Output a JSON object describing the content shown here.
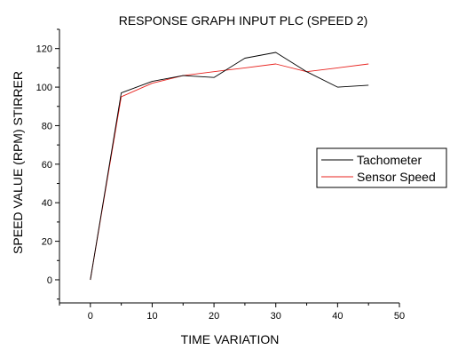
{
  "chart_data": {
    "type": "line",
    "title": "RESPONSE GRAPH INPUT PLC (SPEED 2)",
    "xlabel": "TIME VARIATION",
    "ylabel": "SPEED VALUE (RPM) STIRRER",
    "xlim": [
      -5,
      50
    ],
    "ylim": [
      -12,
      130
    ],
    "x_ticks": [
      0,
      10,
      20,
      30,
      40,
      50
    ],
    "y_ticks": [
      0,
      20,
      40,
      60,
      80,
      100,
      120
    ],
    "grid": false,
    "legend_position": "right",
    "series": [
      {
        "name": "Tachometer",
        "color": "#000000",
        "x": [
          0,
          5,
          10,
          15,
          20,
          25,
          30,
          35,
          40,
          45
        ],
        "y": [
          0,
          97,
          103,
          106,
          105,
          115,
          118,
          108,
          100,
          101
        ]
      },
      {
        "name": "Sensor Speed",
        "color": "#e8231f",
        "x": [
          0,
          5,
          10,
          15,
          20,
          25,
          30,
          35,
          40,
          45
        ],
        "y": [
          0,
          95,
          102,
          106,
          108,
          110,
          112,
          108,
          110,
          112
        ]
      }
    ]
  }
}
